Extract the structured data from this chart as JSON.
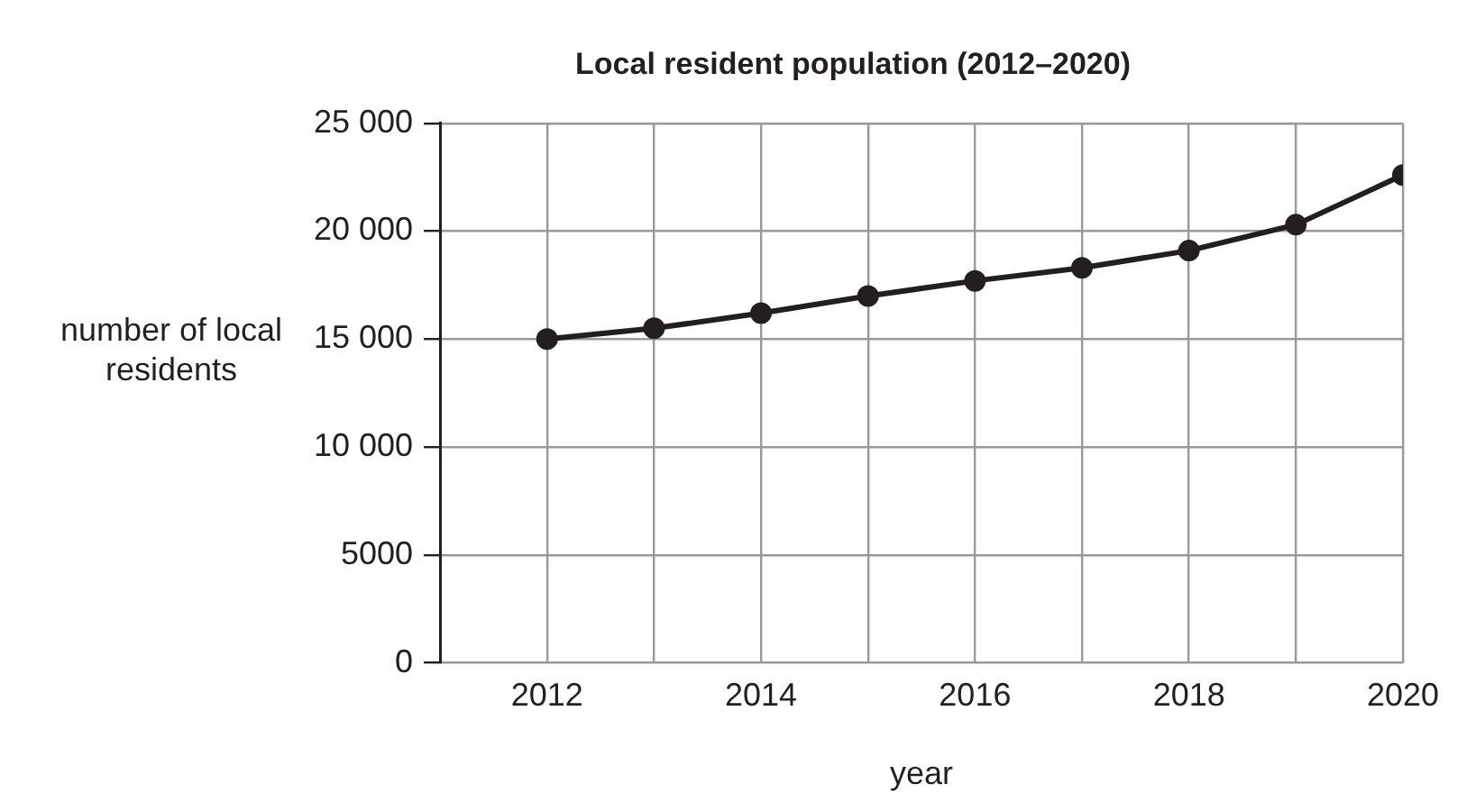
{
  "chart_data": {
    "type": "line",
    "title": "Local resident population (2012–2020)",
    "xlabel": "year",
    "ylabel": "number of local residents",
    "x": [
      2012,
      2013,
      2014,
      2015,
      2016,
      2017,
      2018,
      2019,
      2020
    ],
    "series": [
      {
        "color": "#231f20",
        "values": [
          15000,
          15500,
          16200,
          17000,
          17700,
          18300,
          19100,
          20300,
          22600
        ]
      }
    ],
    "xlim": [
      2011,
      2020
    ],
    "xticks": [
      2012,
      {
        "value": 2013,
        "label": null
      },
      2014,
      {
        "value": 2015,
        "label": null
      },
      2016,
      {
        "value": 2017,
        "label": null
      },
      2018,
      {
        "value": 2019,
        "label": null
      },
      2020
    ],
    "ylim": [
      0,
      25000
    ],
    "yticks": [
      0,
      5000,
      {
        "value": 10000,
        "label": "10 000"
      },
      {
        "value": 15000,
        "label": "15 000"
      },
      {
        "value": 20000,
        "label": "20 000"
      },
      {
        "value": 25000,
        "label": "25 000"
      }
    ],
    "grid": true,
    "legend": false,
    "marker": "circle",
    "line_style": "solid"
  }
}
